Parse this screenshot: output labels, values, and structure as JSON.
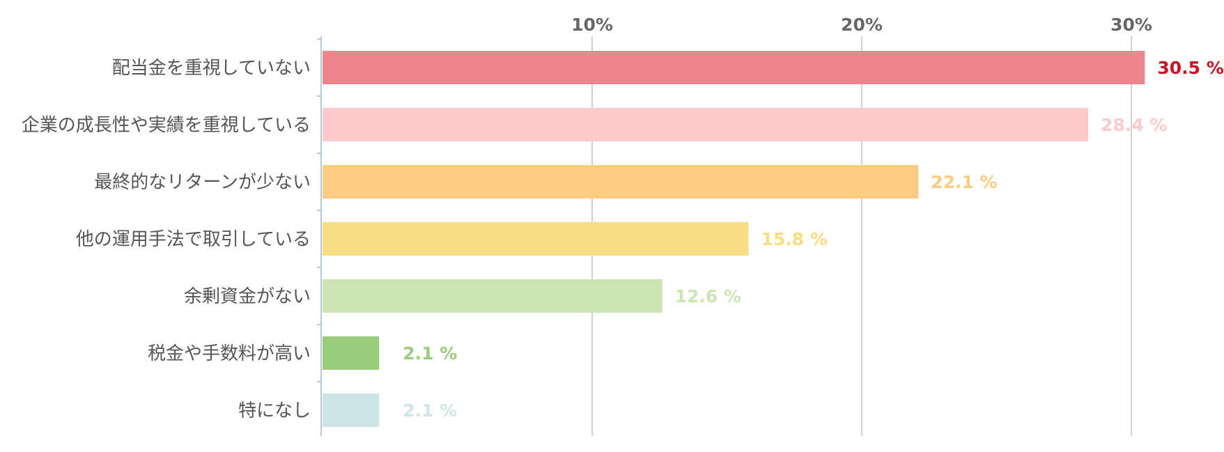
{
  "chart_data": {
    "type": "bar",
    "orientation": "horizontal",
    "categories": [
      "配当金を重視していない",
      "企業の成長性や実績を重視している",
      "最終的なリターンが少ない",
      "他の運用手法で取引している",
      "余剰資金がない",
      "税金や手数料が高い",
      "特になし"
    ],
    "values": [
      30.5,
      28.4,
      22.1,
      15.8,
      12.6,
      2.1,
      2.1
    ],
    "value_suffix": " %",
    "colors": [
      "#ee858d",
      "#ffcacb",
      "#fecb82",
      "#f8de83",
      "#cde5b2",
      "#9acc7e",
      "#cde5e6"
    ],
    "value_label_colors": [
      "#cc1122",
      "#ffcacb",
      "#fecb82",
      "#f8de83",
      "#cde5b2",
      "#9acc7e",
      "#cde5e6"
    ],
    "xlim": [
      0,
      32.5
    ],
    "xticks": [
      10,
      20,
      30
    ],
    "xtick_labels": [
      "10%",
      "20%",
      "30%"
    ],
    "xaxis_position": "top",
    "grid": true,
    "legend": "none"
  }
}
